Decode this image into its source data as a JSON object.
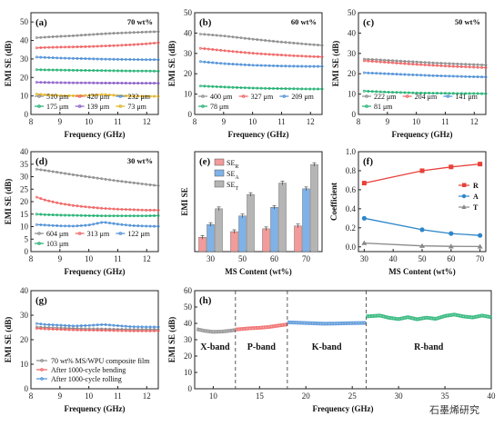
{
  "chart_data": [
    {
      "panel": "(a)",
      "type": "line",
      "annotation": "70 wt%",
      "xlabel": "Frequency (GHz)",
      "ylabel": "EMI SE (dB)",
      "xlim": [
        8,
        12.4
      ],
      "ylim": [
        0,
        55
      ],
      "xticks": [
        "8",
        "9",
        "10",
        "11",
        "12"
      ],
      "yticks": [
        "0",
        "10",
        "20",
        "30",
        "40",
        "50"
      ],
      "x": [
        8.2,
        8.5,
        9,
        9.5,
        10,
        10.5,
        11,
        11.5,
        12,
        12.4
      ],
      "series": [
        {
          "name": "510 μm",
          "color": "#8c8c8c",
          "values": [
            41.5,
            41.8,
            42.2,
            42.6,
            43.1,
            43.6,
            44.0,
            44.3,
            44.6,
            44.8
          ]
        },
        {
          "name": "420 μm",
          "color": "#f06262",
          "values": [
            36.0,
            36.2,
            36.4,
            36.5,
            36.7,
            37.0,
            37.3,
            37.7,
            38.2,
            38.8
          ]
        },
        {
          "name": "232 μm",
          "color": "#4d8fd6",
          "values": [
            31.0,
            30.8,
            30.5,
            30.3,
            30.1,
            29.9,
            29.8,
            29.7,
            29.6,
            29.6
          ]
        },
        {
          "name": "175 μm",
          "color": "#1fb070",
          "values": [
            24.2,
            24.1,
            24.0,
            23.9,
            23.8,
            23.7,
            23.6,
            23.5,
            23.5,
            23.4
          ]
        },
        {
          "name": "139 μm",
          "color": "#8a5cc9",
          "values": [
            17.4,
            17.3,
            17.2,
            17.1,
            17.1,
            17.0,
            17.0,
            16.9,
            16.9,
            16.9
          ]
        },
        {
          "name": "73 μm",
          "color": "#e0b020",
          "values": [
            11.0,
            10.6,
            10.2,
            10.1,
            10.3,
            10.8,
            10.2,
            9.9,
            9.8,
            9.8
          ]
        }
      ]
    },
    {
      "panel": "(b)",
      "type": "line",
      "annotation": "60 wt%",
      "xlabel": "Frequency (GHz)",
      "ylabel": "EMI SE (dB)",
      "xlim": [
        8,
        12.4
      ],
      "ylim": [
        0,
        50
      ],
      "xticks": [
        "8",
        "9",
        "10",
        "11",
        "12"
      ],
      "yticks": [
        "0",
        "10",
        "20",
        "30",
        "40",
        "50"
      ],
      "x": [
        8.2,
        8.5,
        9,
        9.5,
        10,
        10.5,
        11,
        11.5,
        12,
        12.4
      ],
      "series": [
        {
          "name": "400 μm",
          "color": "#8c8c8c",
          "values": [
            39.5,
            39.2,
            38.6,
            37.8,
            37.0,
            36.3,
            35.6,
            35.0,
            34.4,
            34.0
          ]
        },
        {
          "name": "327 μm",
          "color": "#f06262",
          "values": [
            32.5,
            32.1,
            31.4,
            30.7,
            30.1,
            29.6,
            29.2,
            28.8,
            28.5,
            28.3
          ]
        },
        {
          "name": "209 μm",
          "color": "#4d8fd6",
          "values": [
            26.0,
            25.6,
            25.0,
            24.6,
            24.2,
            24.0,
            23.8,
            23.7,
            23.6,
            23.6
          ]
        },
        {
          "name": "78 μm",
          "color": "#1fb070",
          "values": [
            14.0,
            13.8,
            13.5,
            13.2,
            13.0,
            12.8,
            12.7,
            12.6,
            12.5,
            12.5
          ]
        }
      ]
    },
    {
      "panel": "(c)",
      "type": "line",
      "annotation": "50 wt%",
      "xlabel": "Frequency (GHz)",
      "ylabel": "EMI SE (dB)",
      "xlim": [
        8,
        12.4
      ],
      "ylim": [
        0,
        50
      ],
      "xticks": [
        "8",
        "9",
        "10",
        "11",
        "12"
      ],
      "yticks": [
        "0",
        "10",
        "20",
        "30",
        "40",
        "50"
      ],
      "x": [
        8.2,
        8.5,
        9,
        9.5,
        10,
        10.5,
        11,
        11.5,
        12,
        12.4
      ],
      "series": [
        {
          "name": "222 μm",
          "color": "#8c8c8c",
          "values": [
            27.2,
            27.0,
            26.6,
            26.2,
            25.8,
            25.4,
            25.1,
            24.8,
            24.5,
            24.3
          ]
        },
        {
          "name": "204 μm",
          "color": "#f06262",
          "values": [
            26.4,
            26.1,
            25.6,
            25.1,
            24.6,
            24.2,
            23.8,
            23.5,
            23.2,
            23.0
          ]
        },
        {
          "name": "141 μm",
          "color": "#4d8fd6",
          "values": [
            20.5,
            20.3,
            20.0,
            19.7,
            19.4,
            19.1,
            18.9,
            18.7,
            18.5,
            18.4
          ]
        },
        {
          "name": "81 μm",
          "color": "#1fb070",
          "values": [
            11.5,
            11.3,
            11.0,
            10.8,
            10.6,
            10.5,
            10.4,
            10.3,
            10.3,
            10.2
          ]
        }
      ]
    },
    {
      "panel": "(d)",
      "type": "line",
      "annotation": "30 wt%",
      "xlabel": "Frequency (GHz)",
      "ylabel": "EMI SE (dB)",
      "xlim": [
        8,
        12.4
      ],
      "ylim": [
        0,
        40
      ],
      "xticks": [
        "8",
        "9",
        "10",
        "11",
        "12"
      ],
      "yticks": [
        "0",
        "5",
        "10",
        "15",
        "20",
        "25",
        "30",
        "35",
        "40"
      ],
      "x": [
        8.2,
        8.5,
        9,
        9.5,
        10,
        10.5,
        11,
        11.5,
        12,
        12.4
      ],
      "series": [
        {
          "name": "604 μm",
          "color": "#8c8c8c",
          "values": [
            33.0,
            32.5,
            31.6,
            30.7,
            29.9,
            29.1,
            28.3,
            27.6,
            26.9,
            26.4
          ]
        },
        {
          "name": "313 μm",
          "color": "#f06262",
          "values": [
            21.8,
            20.6,
            19.3,
            18.4,
            17.8,
            17.3,
            17.0,
            16.8,
            16.6,
            16.6
          ]
        },
        {
          "name": "122 μm",
          "color": "#4d8fd6",
          "values": [
            10.8,
            10.6,
            10.3,
            10.2,
            10.6,
            11.8,
            11.0,
            10.4,
            10.2,
            10.1
          ]
        },
        {
          "name": "103 μm",
          "color": "#1fb070",
          "values": [
            15.0,
            14.8,
            14.6,
            14.5,
            14.4,
            14.3,
            14.3,
            14.3,
            14.3,
            14.4
          ]
        }
      ]
    },
    {
      "panel": "(e)",
      "type": "bar",
      "xlabel": "MS Content (wt%)",
      "ylabel": "EMI SE",
      "ylim": [
        0,
        35
      ],
      "categories": [
        "30",
        "50",
        "60",
        "70"
      ],
      "series": [
        {
          "name": "SE",
          "sub": "R",
          "color": "#f39a9a",
          "values": [
            5,
            7,
            8,
            9
          ]
        },
        {
          "name": "SE",
          "sub": "A",
          "color": "#7fb2e8",
          "values": [
            9.5,
            12.5,
            15.5,
            22
          ]
        },
        {
          "name": "SE",
          "sub": "T",
          "color": "#b5b5b5",
          "values": [
            15,
            20,
            24,
            30.5
          ]
        }
      ]
    },
    {
      "panel": "(f)",
      "type": "line",
      "xlabel": "MS Content (wt%)",
      "ylabel": "Coefficient",
      "xlim": [
        28,
        72
      ],
      "ylim": [
        -0.05,
        1.0
      ],
      "xticks": [
        "30",
        "40",
        "50",
        "60",
        "70"
      ],
      "yticks": [
        "0.0",
        "0.2",
        "0.4",
        "0.6",
        "0.8",
        "1.0"
      ],
      "x": [
        30,
        50,
        60,
        70
      ],
      "series": [
        {
          "name": "R",
          "color": "#e8403a",
          "marker": "square",
          "values": [
            0.67,
            0.8,
            0.84,
            0.87
          ]
        },
        {
          "name": "A",
          "color": "#2e86c9",
          "marker": "circle",
          "values": [
            0.3,
            0.18,
            0.14,
            0.12
          ]
        },
        {
          "name": "T",
          "color": "#888888",
          "marker": "triangle",
          "values": [
            0.04,
            0.01,
            0.005,
            0.003
          ]
        }
      ]
    },
    {
      "panel": "(g)",
      "type": "line",
      "xlabel": "Frequency (GHz)",
      "ylabel": "EMI SE (dB)",
      "xlim": [
        8,
        12.4
      ],
      "ylim": [
        0,
        40
      ],
      "xticks": [
        "8",
        "9",
        "10",
        "11",
        "12"
      ],
      "yticks": [
        "0",
        "10",
        "20",
        "30",
        "40"
      ],
      "x": [
        8.2,
        8.5,
        9,
        9.5,
        10,
        10.5,
        11,
        11.5,
        12,
        12.4
      ],
      "series": [
        {
          "name": "70 wt% MS/WPU composite film",
          "color": "#8c8c8c",
          "values": [
            25.2,
            25.0,
            24.8,
            24.6,
            24.5,
            24.4,
            24.3,
            24.2,
            24.2,
            24.2
          ]
        },
        {
          "name": "After 1000-cycle bending",
          "color": "#f06262",
          "values": [
            24.6,
            24.4,
            24.2,
            24.0,
            23.9,
            23.8,
            23.7,
            23.6,
            23.6,
            23.6
          ]
        },
        {
          "name": "After 1000-cycle rolling",
          "color": "#4d8fd6",
          "values": [
            26.6,
            26.2,
            25.9,
            25.6,
            25.8,
            26.2,
            25.7,
            25.3,
            25.2,
            25.2
          ]
        }
      ]
    },
    {
      "panel": "(h)",
      "type": "line",
      "xlabel": "Frequency (GHz)",
      "ylabel": "EMI SE (dB)",
      "xlim": [
        8,
        40
      ],
      "ylim": [
        0,
        60
      ],
      "xticks": [
        "10",
        "15",
        "20",
        "25",
        "30",
        "35",
        "40"
      ],
      "yticks": [
        "0",
        "10",
        "20",
        "30",
        "40",
        "50",
        "60"
      ],
      "bands": [
        {
          "label": "X-band",
          "range": [
            8,
            12.4
          ],
          "color": "#8c8c8c"
        },
        {
          "label": "P-band",
          "range": [
            12.4,
            18
          ],
          "color": "#f06262"
        },
        {
          "label": "K-band",
          "range": [
            18,
            26.5
          ],
          "color": "#4d8fd6"
        },
        {
          "label": "R-band",
          "range": [
            26.5,
            40
          ],
          "color": "#1fb070"
        }
      ],
      "segments": [
        {
          "x": [
            8.2,
            9,
            10,
            11,
            12,
            12.4
          ],
          "values": [
            36.5,
            35.5,
            34.8,
            35.0,
            35.6,
            36.0
          ]
        },
        {
          "x": [
            12.4,
            13,
            14,
            15,
            16,
            17,
            18
          ],
          "values": [
            36.2,
            36.5,
            37.0,
            37.3,
            37.8,
            38.6,
            39.4
          ]
        },
        {
          "x": [
            18,
            19,
            20,
            21,
            22,
            23,
            24,
            25,
            26.5
          ],
          "values": [
            40.6,
            40.4,
            40.2,
            40.0,
            39.8,
            39.9,
            40.0,
            40.1,
            40.3
          ]
        },
        {
          "x": [
            26.5,
            28,
            29,
            30,
            31,
            32,
            33,
            34,
            35,
            36,
            37,
            38,
            39,
            40
          ],
          "values": [
            44.2,
            44.8,
            43.4,
            42.6,
            43.8,
            42.5,
            43.5,
            42.8,
            44.5,
            45.4,
            44.2,
            43.6,
            44.8,
            43.8
          ]
        }
      ]
    }
  ],
  "watermark": "石墨烯研究"
}
